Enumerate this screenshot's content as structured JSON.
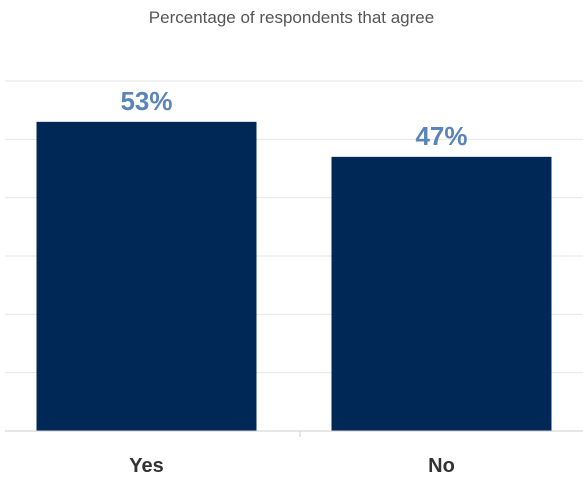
{
  "chart_data": {
    "type": "bar",
    "title": "Percentage of respondents that agree",
    "categories": [
      "Yes",
      "No"
    ],
    "values": [
      53,
      47
    ],
    "value_labels": [
      "53%",
      "47%"
    ],
    "ylim": [
      0,
      60
    ],
    "grid": true,
    "legend": "none",
    "colors": {
      "bar": "#002856",
      "value_label": "#5b85b6",
      "gridline": "#e6e6e6",
      "axis": "#cccccc"
    }
  }
}
